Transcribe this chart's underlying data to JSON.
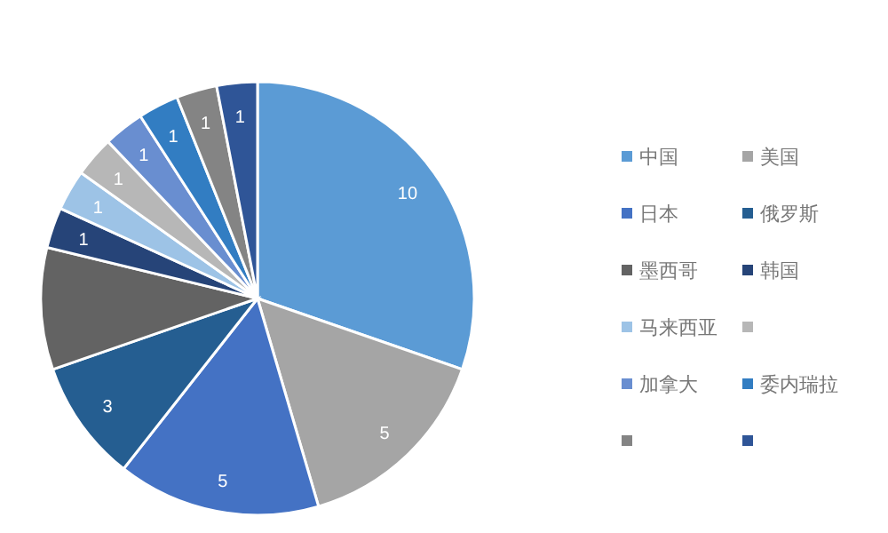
{
  "chart_data": {
    "type": "pie",
    "categories": [
      "中国",
      "美国",
      "日本",
      "俄罗斯",
      "墨西哥",
      "韩国",
      "马来西亚",
      null,
      "加拿大",
      "委内瑞拉",
      null,
      null
    ],
    "values": [
      10,
      5,
      5,
      3,
      3,
      1,
      1,
      1,
      1,
      1,
      1,
      1
    ],
    "value_labels": [
      "10",
      "5",
      "5",
      "3",
      null,
      "1",
      "1",
      "1",
      "1",
      "1",
      "1",
      "1"
    ],
    "colors": [
      "#5b9bd5",
      "#a5a5a5",
      "#4472c4",
      "#255e91",
      "#636363",
      "#264478",
      "#9dc3e6",
      "#b7b7b7",
      "#698ed0",
      "#327dc2",
      "#848484",
      "#2f5597"
    ],
    "legend": "right"
  }
}
